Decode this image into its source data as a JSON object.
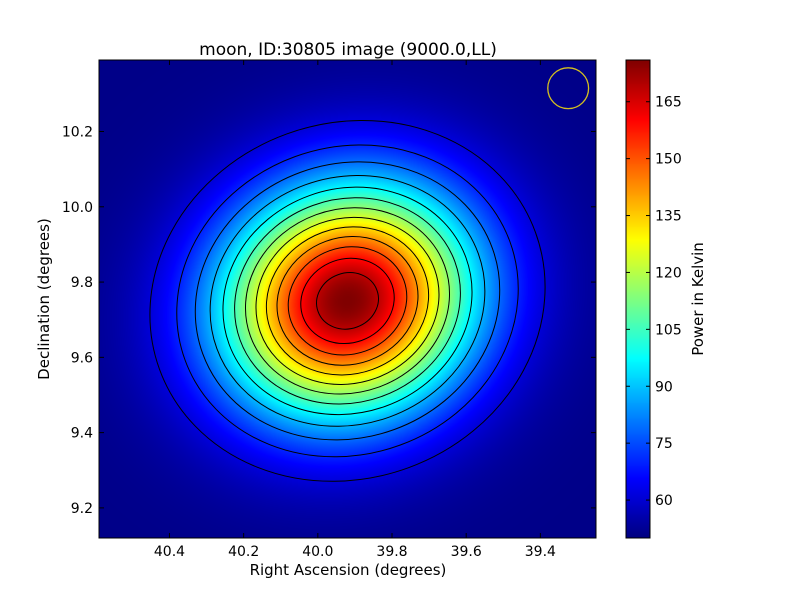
{
  "chart_data": {
    "type": "heatmap",
    "title": "moon, ID:30805 image (9000.0,LL)",
    "xlabel": "Right Ascension (degrees)",
    "ylabel": "Declination (degrees)",
    "xlim": [
      40.59,
      39.25
    ],
    "ylim": [
      9.12,
      10.39
    ],
    "x_ticks": [
      "40.4",
      "40.2",
      "40.0",
      "39.8",
      "39.6",
      "39.4"
    ],
    "y_ticks": [
      "9.2",
      "9.4",
      "9.6",
      "9.8",
      "10.0",
      "10.2"
    ],
    "colorbar": {
      "label": "Power in Kelvin",
      "range": [
        50,
        176
      ],
      "ticks": [
        "60",
        "75",
        "90",
        "105",
        "120",
        "135",
        "150",
        "165"
      ],
      "colormap": "jet"
    },
    "source": {
      "center_ra": 39.92,
      "center_dec": 9.75,
      "peak_kelvin": 176,
      "background_kelvin": 51,
      "sigma_ra_deg": 0.24,
      "sigma_dec_deg": 0.21,
      "rotation_deg": -20
    },
    "contours": {
      "color": "#000000",
      "count": 13
    },
    "beam": {
      "center_ra": 39.325,
      "center_dec": 10.315,
      "radius_deg": 0.055,
      "color": "#d4c020"
    }
  }
}
